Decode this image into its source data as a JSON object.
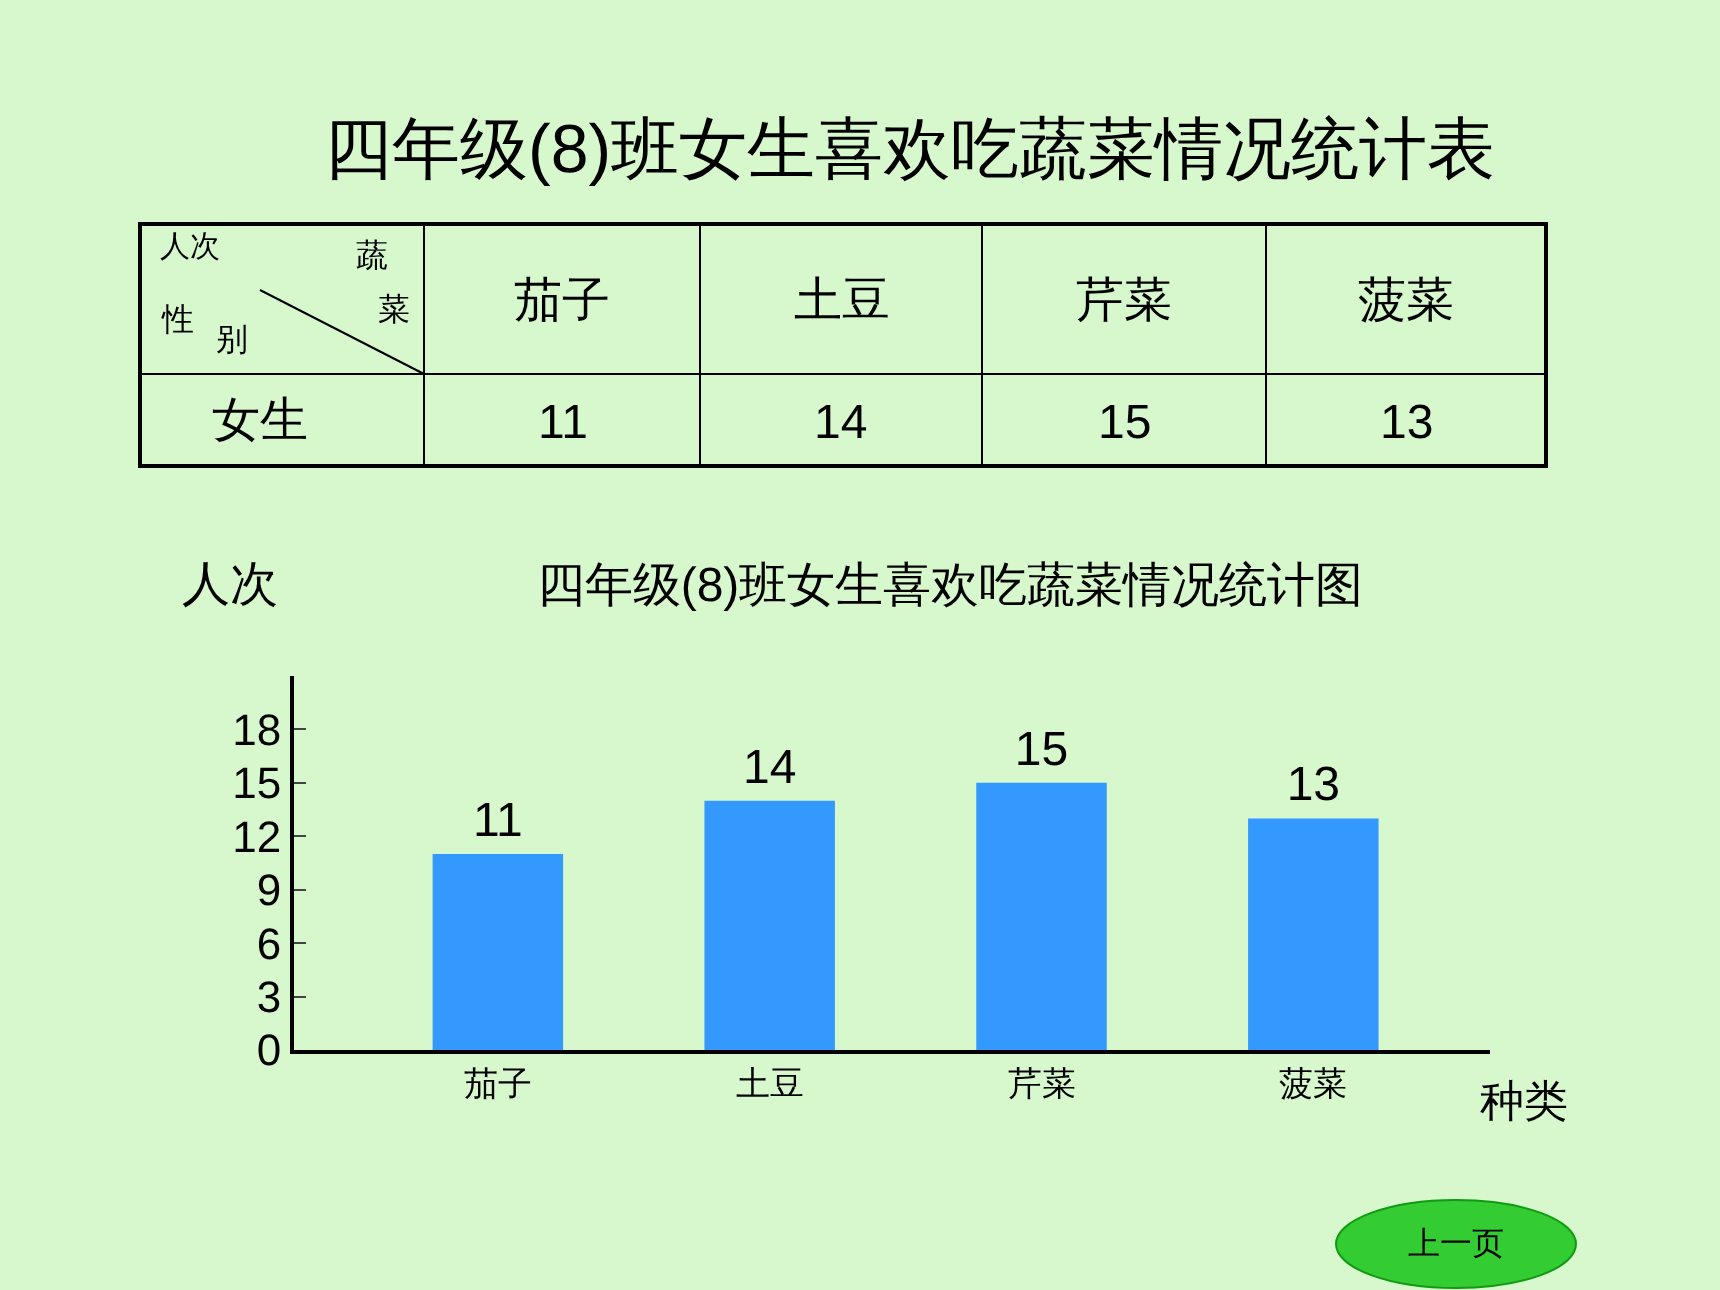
{
  "chart_data": {
    "type": "bar",
    "title": "四年级(8)班女生喜欢吃蔬菜情况统计图",
    "xlabel": "种类",
    "ylabel": "人次",
    "categories": [
      "茄子",
      "土豆",
      "芹菜",
      "菠菜"
    ],
    "values": [
      11,
      14,
      15,
      13
    ],
    "color": "#3399ff",
    "ylim": [
      0,
      21
    ],
    "yticks": [
      0,
      3,
      6,
      9,
      12,
      15,
      18
    ],
    "value_labels": [
      "11",
      "14",
      "15",
      "13"
    ],
    "grid": false,
    "legend": false,
    "annotations": [
      "四年级(8)班女生喜欢吃蔬菜情况统计表",
      "人次",
      "蔬",
      "菜",
      "性",
      "别",
      "女生",
      "上一页"
    ]
  }
}
